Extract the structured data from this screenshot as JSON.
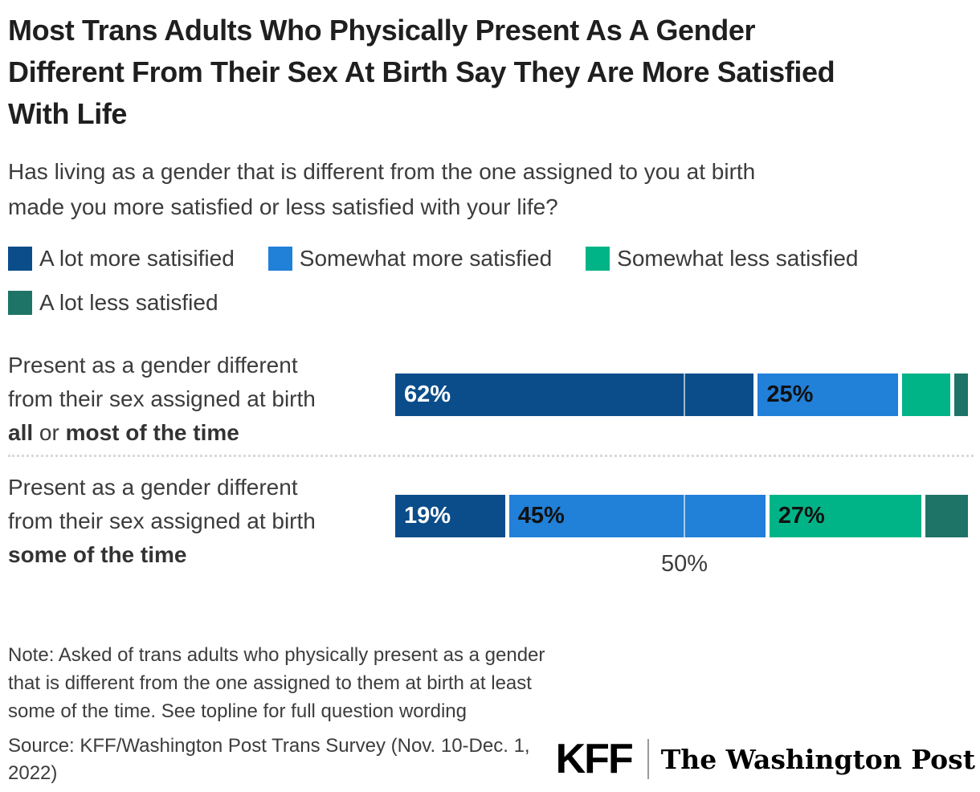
{
  "title": "Most Trans Adults Who Physically Present As A Gender Different From Their Sex At Birth Say They Are More Satisfied With Life",
  "title_lines": [
    "Most Trans Adults Who Physically Present As A Gender",
    "Different From Their Sex At Birth Say They Are More Satisfied",
    "With Life"
  ],
  "subtitle_lines": [
    "Has living as a gender that is different from the one assigned to you at birth",
    "made you more satisfied or less satisfied with your life?"
  ],
  "chart_data": {
    "type": "bar",
    "orientation": "horizontal-stacked",
    "title": "Most Trans Adults Who Physically Present As A Gender Different From Their Sex At Birth Say They Are More Satisfied With Life",
    "subtitle": "Has living as a gender that is different from the one assigned to you at birth made you more satisfied or less satisfied with your life?",
    "categories": [
      "Present as a gender different from their sex assigned at birth all or most of the time",
      "Present as a gender different from their sex assigned at birth some of the time"
    ],
    "series": [
      {
        "name": "A lot more satisified",
        "color": "#0b4d8a",
        "values": [
          62,
          19
        ]
      },
      {
        "name": "Somewhat more satisfied",
        "color": "#2180d8",
        "values": [
          25,
          45
        ]
      },
      {
        "name": "Somewhat less satisfied",
        "color": "#00b487",
        "values": [
          9,
          27
        ]
      },
      {
        "name": "A lot less satisfied",
        "color": "#1e7466",
        "values": [
          3,
          8
        ]
      }
    ],
    "bar_labels": [
      [
        "62%",
        "25%",
        "",
        ""
      ],
      [
        "19%",
        "45%",
        "27%",
        ""
      ]
    ],
    "x_axis": {
      "range": [
        0,
        100
      ],
      "tick_labels": [
        "50%"
      ],
      "tick_values": [
        50
      ],
      "gridline_at": 50
    },
    "legend_position": "top",
    "grid": "single 50% white gridline over bars, dotted row divider"
  },
  "rows": [
    {
      "line1": "Present as a gender different",
      "line2": "from their sex assigned at birth",
      "bold_a": "all",
      "mid": " or ",
      "bold_b": "most of the time"
    },
    {
      "line1": "Present as a gender different",
      "line2": "from their sex assigned at birth",
      "bold_a": "some of the time",
      "mid": "",
      "bold_b": ""
    }
  ],
  "note_lines": [
    "Note: Asked of trans adults who physically present as a gender",
    "that is different from the one assigned to them at birth at least",
    "some of the time. See topline for full question wording"
  ],
  "source_lines": [
    "Source: KFF/Washington Post Trans Survey (Nov. 10-Dec. 1,",
    "2022)"
  ],
  "logos": {
    "kff": "KFF",
    "wapo": "The Washington Post"
  }
}
